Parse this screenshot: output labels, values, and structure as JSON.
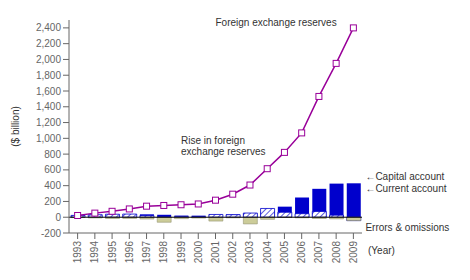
{
  "chart_data": {
    "type": "bar",
    "x_label": "(Year)",
    "y_label": "($ billion)",
    "categories": [
      1993,
      1994,
      1995,
      1996,
      1997,
      1998,
      1999,
      2000,
      2001,
      2002,
      2003,
      2004,
      2005,
      2006,
      2007,
      2008,
      2009
    ],
    "series": [
      {
        "type": "bar",
        "color": "#0000cc",
        "values": [
          0,
          8,
          2,
          7,
          37,
          31,
          21,
          20,
          17,
          35,
          46,
          69,
          134,
          250,
          360,
          426,
          430
        ]
      },
      {
        "type": "bar",
        "color": "#0000cc",
        "values": [
          23,
          32,
          38,
          40,
          21,
          -6,
          5,
          2,
          35,
          32,
          53,
          111,
          63,
          45,
          73,
          26,
          -43
        ]
      },
      {
        "type": "bar",
        "color": "#cccc99",
        "values": [
          -4,
          -10,
          -16,
          -15,
          -23,
          -64,
          -18,
          -11,
          -49,
          -8,
          -85,
          -27,
          -2,
          -8,
          -16,
          -21,
          -43
        ]
      },
      {
        "type": "line",
        "color": "#990099",
        "marker": "square",
        "values": [
          22,
          52,
          75,
          105,
          140,
          149,
          158,
          168,
          216,
          292,
          408,
          615,
          822,
          1069,
          1531,
          1950,
          2400
        ]
      }
    ],
    "ylim": [
      -200,
      2500
    ],
    "yticks": [
      -200,
      0,
      200,
      400,
      600,
      800,
      {
        "value": 1000,
        "label": "1,000"
      },
      {
        "value": 1200,
        "label": "1,200"
      },
      {
        "value": 1400,
        "label": "1,400"
      },
      {
        "value": 1600,
        "label": "1,600"
      },
      {
        "value": 1800,
        "label": "1,800"
      },
      {
        "value": 2000,
        "label": "2,000"
      },
      {
        "value": 2200,
        "label": "2,200"
      },
      {
        "value": 2400,
        "label": "2,400"
      }
    ],
    "stacked": false,
    "grid": false,
    "annotations": [
      "Foreign exchange reserves",
      "Rise in foreign\nexchange reserves",
      "←Capital account",
      "←Current account",
      "Errors & omissions"
    ]
  }
}
